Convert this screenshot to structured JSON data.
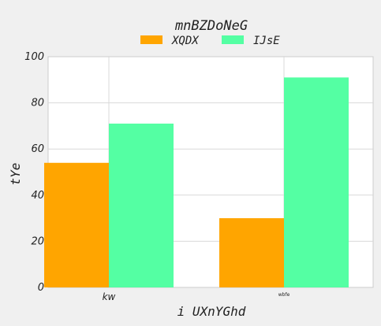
{
  "chart_data": {
    "type": "bar",
    "title": "mnBZDoNeG",
    "xlabel": "i UXnYGhd",
    "ylabel": "tYe",
    "categories": [
      "kw",
      "wbfe"
    ],
    "series": [
      {
        "name": "XQDX",
        "values": [
          54,
          30
        ],
        "color": "#ffa500"
      },
      {
        "name": "IJsE",
        "values": [
          71,
          91
        ],
        "color": "#54ffa3"
      }
    ],
    "ylim": [
      0,
      100
    ],
    "yticks": [
      0,
      20,
      40,
      60,
      80,
      100
    ],
    "grid": true,
    "legend": "top-center"
  }
}
